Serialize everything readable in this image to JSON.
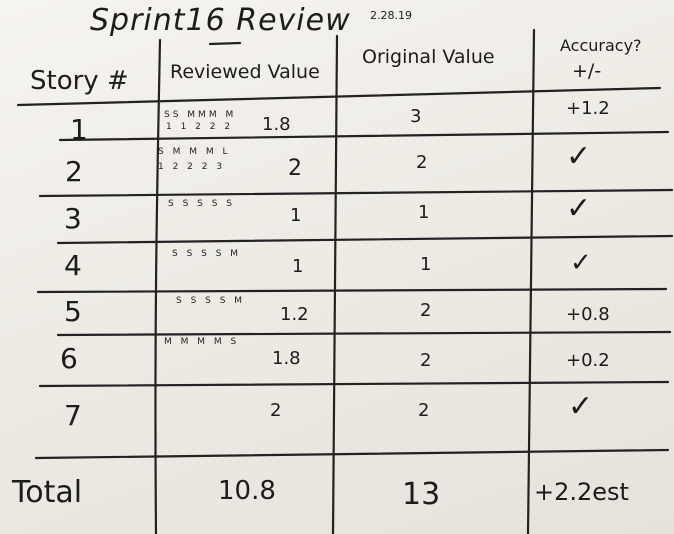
{
  "title": "Sprint16 Review",
  "date": "2.28.19",
  "headers": {
    "story": "Story #",
    "reviewed": "Reviewed Value",
    "original": "Original Value",
    "accuracy_line1": "Accuracy?",
    "accuracy_line2": "+/-"
  },
  "rows": [
    {
      "story": "1",
      "sizes": "SS MMM M",
      "points": "1 1 2 2 2",
      "reviewed": "1.8",
      "original": "3",
      "accuracy": "+1.2"
    },
    {
      "story": "2",
      "sizes": "S M M M L",
      "points": "1 2 2 2 3",
      "reviewed": "2",
      "original": "2",
      "accuracy": "✓"
    },
    {
      "story": "3",
      "sizes": "S S S S S",
      "points": "",
      "reviewed": "1",
      "original": "1",
      "accuracy": "✓"
    },
    {
      "story": "4",
      "sizes": "S S S S M",
      "points": "",
      "reviewed": "1",
      "original": "1",
      "accuracy": "✓"
    },
    {
      "story": "5",
      "sizes": "S S S S M",
      "points": "",
      "reviewed": "1.2",
      "original": "2",
      "accuracy": "+0.8"
    },
    {
      "story": "6",
      "sizes": "M M M M S",
      "points": "",
      "reviewed": "1.8",
      "original": "2",
      "accuracy": "+0.2"
    },
    {
      "story": "7",
      "sizes": "",
      "points": "",
      "reviewed": "2",
      "original": "2",
      "accuracy": "✓"
    }
  ],
  "total": {
    "label": "Total",
    "reviewed": "10.8",
    "original": "13",
    "accuracy": "+2.2est"
  }
}
